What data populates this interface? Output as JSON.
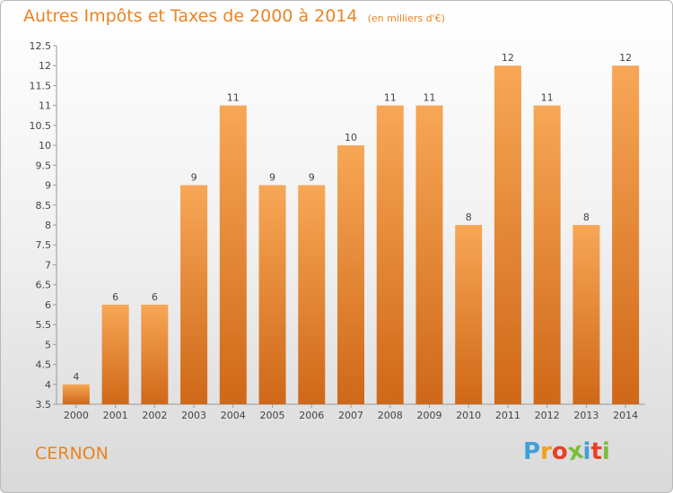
{
  "title": "Autres Impôts et Taxes de 2000 à 2014",
  "unit": "(en milliers d'€)",
  "commune": "CERNON",
  "brand": {
    "letters": [
      "P",
      "r",
      "o",
      "x",
      "i",
      "t",
      "i"
    ],
    "colors": [
      "#3fa0d8",
      "#f0a020",
      "#e8402a",
      "#7bbf3a",
      "#3fa0d8",
      "#e8402a",
      "#7bbf3a"
    ]
  },
  "colors": {
    "bar_top": "#f7a756",
    "bar_bottom": "#cf6818",
    "accent": "#ea8424"
  },
  "chart_data": {
    "type": "bar",
    "categories": [
      "2000",
      "2001",
      "2002",
      "2003",
      "2004",
      "2005",
      "2006",
      "2007",
      "2008",
      "2009",
      "2010",
      "2011",
      "2012",
      "2013",
      "2014"
    ],
    "values": [
      4,
      6,
      6,
      9,
      11,
      9,
      9,
      10,
      11,
      11,
      8,
      12,
      11,
      8,
      12
    ],
    "data_labels": [
      "4",
      "6",
      "6",
      "9",
      "11",
      "9",
      "9",
      "10",
      "11",
      "11",
      "8",
      "12",
      "11",
      "8",
      "12"
    ],
    "y_ticks": [
      "3.5",
      "4",
      "4.5",
      "5",
      "5.5",
      "6",
      "6.5",
      "7",
      "7.5",
      "8",
      "8.5",
      "9",
      "9.5",
      "10",
      "10.5",
      "11",
      "11.5",
      "12",
      "12.5"
    ],
    "ylim": [
      3.5,
      12.5
    ],
    "grid": false
  }
}
